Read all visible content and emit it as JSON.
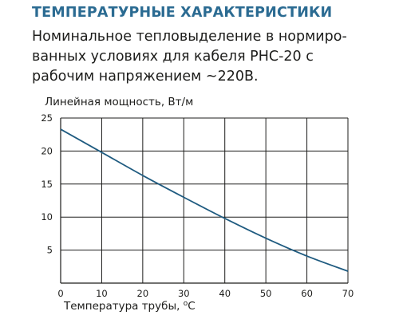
{
  "heading": "ТЕМПЕРАТУРНЫЕ ХАРАКТЕРИСТИКИ",
  "description_lines": [
    "Номинальное тепловыделение в нормиро-",
    "ванных условиях для кабеля РНС-20 с",
    "рабочим напряжением ~220В."
  ],
  "colors": {
    "heading": "#2b6b92",
    "curve": "#1f5b80",
    "grid": "#1d1d1b"
  },
  "chart_data": {
    "type": "line",
    "ylabel": "Линейная мощность, Вт/м",
    "xlabel_main": "Температура трубы, ",
    "xlabel_unit_sup": "o",
    "xlabel_unit": "C",
    "xlim": [
      0,
      70
    ],
    "ylim": [
      0,
      25
    ],
    "xticks": [
      0,
      10,
      20,
      30,
      40,
      50,
      60,
      70
    ],
    "yticks": [
      5,
      10,
      15,
      20,
      25
    ],
    "grid": true,
    "series": [
      {
        "x": [
          0,
          10,
          20,
          30,
          40,
          50,
          60,
          70
        ],
        "values": [
          23.3,
          19.8,
          16.3,
          13.0,
          9.8,
          6.8,
          4.1,
          1.8
        ]
      }
    ]
  }
}
